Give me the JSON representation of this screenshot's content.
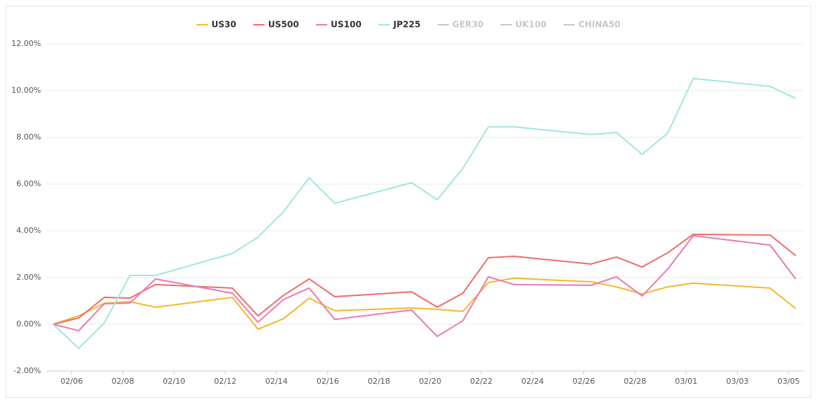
{
  "chart_data": {
    "type": "line",
    "x": [
      "02/05",
      "02/06",
      "02/07",
      "02/08",
      "02/09",
      "02/12",
      "02/13",
      "02/14",
      "02/15",
      "02/16",
      "02/19",
      "02/20",
      "02/21",
      "02/22",
      "02/23",
      "02/26",
      "02/27",
      "02/28",
      "02/29",
      "03/01",
      "03/04",
      "03/05"
    ],
    "series": [
      {
        "name": "US30",
        "color": "#f5b82e",
        "values": [
          0,
          0.36,
          0.9,
          0.97,
          0.73,
          1.15,
          -0.21,
          0.24,
          1.12,
          0.58,
          0.7,
          0.64,
          0.55,
          1.79,
          1.97,
          1.82,
          1.6,
          1.3,
          1.6,
          1.76,
          1.55,
          0.67
        ]
      },
      {
        "name": "US500",
        "color": "#ec6f6a",
        "values": [
          0,
          0.27,
          1.15,
          1.12,
          1.7,
          1.55,
          0.36,
          1.24,
          1.94,
          1.18,
          1.39,
          0.73,
          1.33,
          2.85,
          2.91,
          2.58,
          2.88,
          2.45,
          3.06,
          3.85,
          3.82,
          2.94
        ]
      },
      {
        "name": "US100",
        "color": "#ec7ab0",
        "values": [
          0,
          -0.27,
          0.88,
          0.91,
          1.94,
          1.33,
          0.09,
          1.06,
          1.55,
          0.21,
          0.61,
          -0.52,
          0.15,
          2.03,
          1.7,
          1.67,
          2.03,
          1.21,
          2.36,
          3.79,
          3.39,
          1.94
        ]
      },
      {
        "name": "JP225",
        "color": "#a3e6df",
        "values": [
          0,
          -1.03,
          0.06,
          2.09,
          2.09,
          3.03,
          3.73,
          4.82,
          6.27,
          5.18,
          6.06,
          5.33,
          6.67,
          8.45,
          8.45,
          8.12,
          8.21,
          7.27,
          8.18,
          10.52,
          10.18,
          9.67
        ]
      }
    ],
    "hidden_series": [
      "GER30",
      "UK100",
      "CHINA50"
    ],
    "hidden_color": "#c8c8c8",
    "legend": "top",
    "grid": true,
    "ylim": [
      -2,
      12
    ],
    "yticks": [
      {
        "value": -2,
        "label": "-2.00%"
      },
      {
        "value": 0,
        "label": "0.00%"
      },
      {
        "value": 2,
        "label": "2.00%"
      },
      {
        "value": 4,
        "label": "4.00%"
      },
      {
        "value": 6,
        "label": "6.00%"
      },
      {
        "value": 8,
        "label": "8.00%"
      },
      {
        "value": 10,
        "label": "10.00%"
      },
      {
        "value": 12,
        "label": "12.00%"
      }
    ],
    "xticks": [
      "02/06",
      "02/08",
      "02/10",
      "02/12",
      "02/14",
      "02/16",
      "02/18",
      "02/20",
      "02/22",
      "02/24",
      "02/26",
      "02/28",
      "03/01",
      "03/03",
      "03/05"
    ]
  }
}
